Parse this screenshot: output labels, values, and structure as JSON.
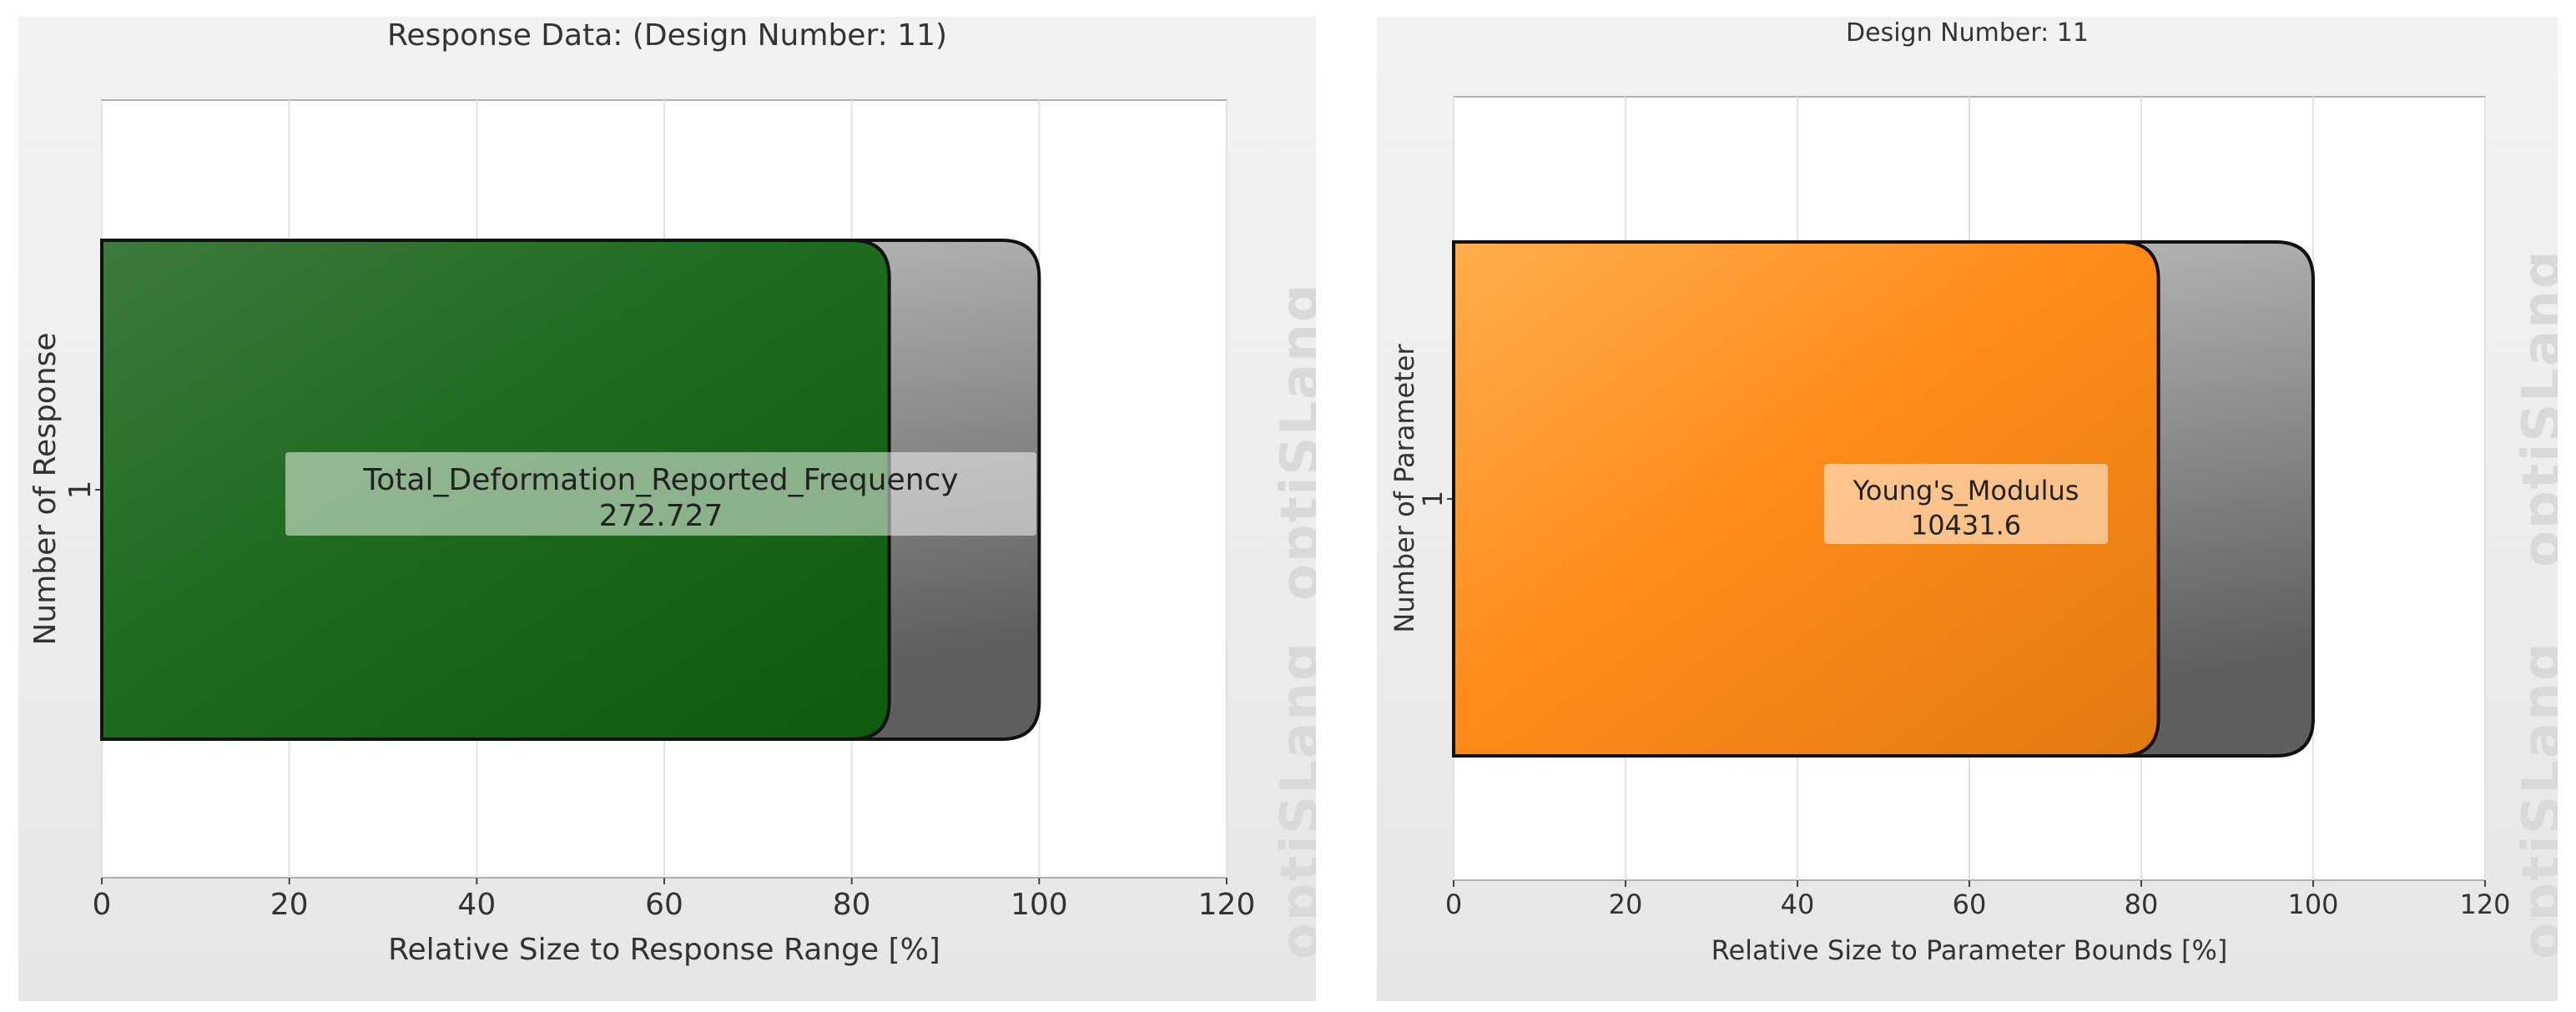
{
  "chart_data": [
    {
      "type": "bar",
      "orientation": "horizontal",
      "title": "Response Data: (Design Number: 11)",
      "xlabel": "Relative Size to Response Range [%]",
      "ylabel": "Number of Response",
      "xlim": [
        0,
        120
      ],
      "xticks": [
        0,
        20,
        40,
        60,
        80,
        100,
        120
      ],
      "categories": [
        "1"
      ],
      "series": [
        {
          "role": "range",
          "values": [
            100
          ],
          "color": "#8c8c8c"
        },
        {
          "role": "value",
          "values": [
            84
          ],
          "color": "#1f6b1f"
        }
      ],
      "label_name": "Total_Deformation_Reported_Frequency",
      "label_value": "272.727",
      "grid": true,
      "watermark": "optiSLang"
    },
    {
      "type": "bar",
      "orientation": "horizontal",
      "title": "Design Number: 11",
      "xlabel": "Relative Size to Parameter Bounds [%]",
      "ylabel": "Number of Parameter",
      "xlim": [
        0,
        120
      ],
      "xticks": [
        0,
        20,
        40,
        60,
        80,
        100,
        120
      ],
      "categories": [
        "1"
      ],
      "series": [
        {
          "role": "range",
          "values": [
            100
          ],
          "color": "#8c8c8c"
        },
        {
          "role": "value",
          "values": [
            82
          ],
          "color": "#ff8c1a"
        }
      ],
      "label_name": "Young's_Modulus",
      "label_value": "10431.6",
      "grid": true,
      "watermark": "optiSLang"
    }
  ]
}
